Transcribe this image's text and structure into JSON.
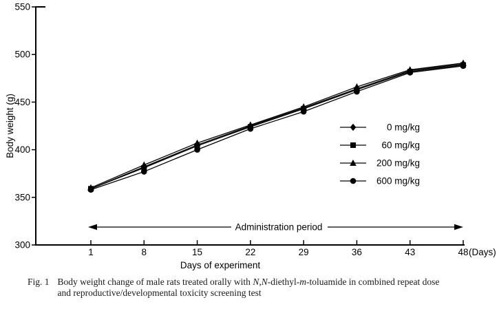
{
  "chart_data": {
    "type": "line",
    "title": "",
    "xlabel": "Days of experiment",
    "x_axis_unit": "(Days)",
    "ylabel": "Body weight (g)",
    "x_tick_labels": [
      "1",
      "8",
      "15",
      "22",
      "29",
      "36",
      "43",
      "48"
    ],
    "x_values_days": [
      1,
      8,
      15,
      22,
      29,
      36,
      43,
      48
    ],
    "y_ticks": [
      300,
      350,
      400,
      450,
      500,
      550
    ],
    "ylim": [
      300,
      550
    ],
    "grid": false,
    "legend_position": "inside right",
    "annotation": "Administration period",
    "color": "#000000",
    "series": [
      {
        "name": "0 mg/kg",
        "marker": "diamond",
        "values": [
          359,
          382,
          405,
          425,
          444,
          464,
          483,
          490
        ]
      },
      {
        "name": "60 mg/kg",
        "marker": "square",
        "values": [
          359,
          381,
          404,
          424,
          443,
          463,
          482,
          489
        ]
      },
      {
        "name": "200 mg/kg",
        "marker": "triangle",
        "values": [
          360,
          384,
          407,
          426,
          445,
          466,
          484,
          491
        ]
      },
      {
        "name": "600 mg/kg",
        "marker": "circle",
        "values": [
          358,
          377,
          400,
          422,
          440,
          461,
          481,
          488
        ]
      }
    ]
  },
  "caption": {
    "fig_label": "Fig. 1",
    "l1_a": "Body weight change of male rats treated orally with ",
    "l1_b": "N,N",
    "l1_c": "-diethyl-",
    "l1_d": "m",
    "l1_e": "-toluamide in combined repeat dose",
    "line2": "and reproductive/developmental toxicity screening test"
  }
}
